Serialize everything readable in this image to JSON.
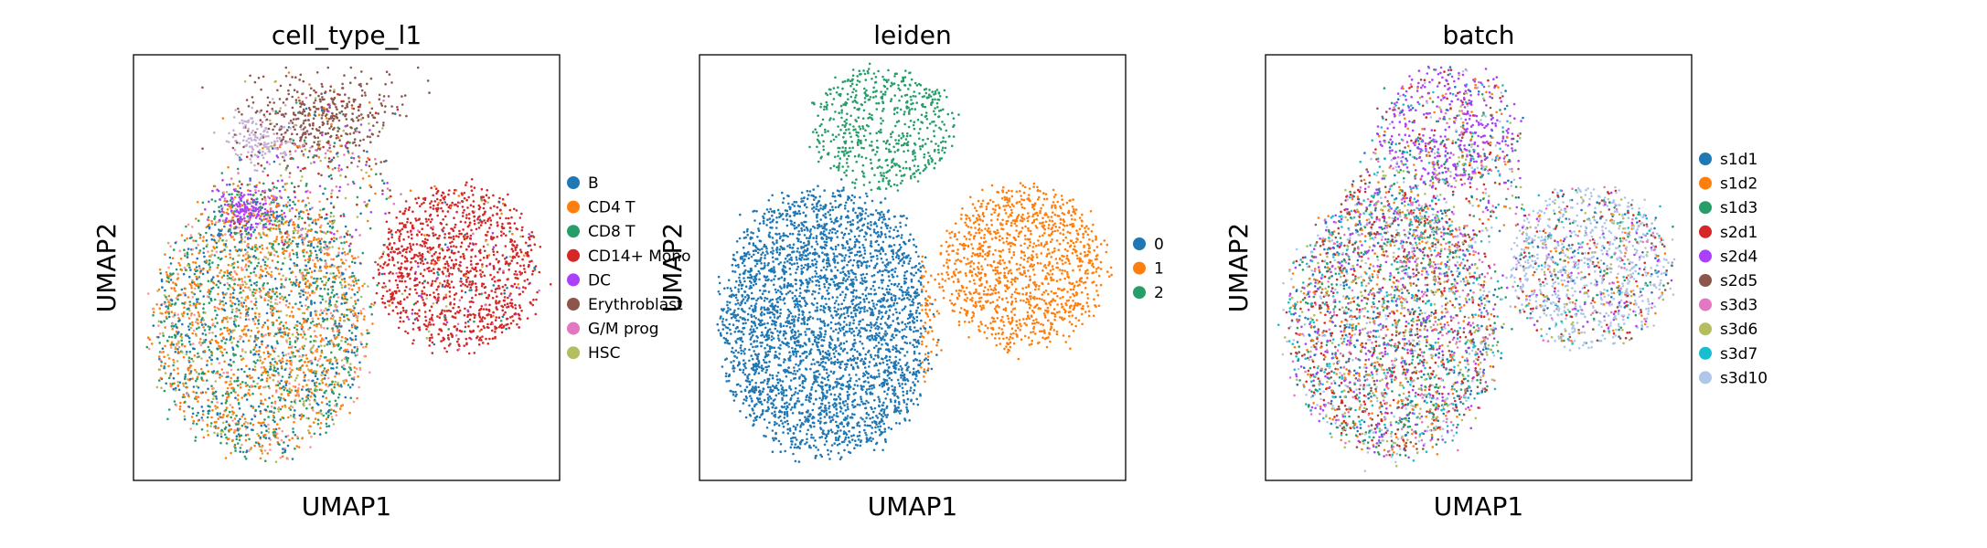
{
  "chart_data": [
    {
      "type": "scatter",
      "title": "cell_type_l1",
      "xlabel": "UMAP1",
      "ylabel": "UMAP2",
      "grid": false,
      "ticks": false,
      "legend_placement": "right",
      "legend": [
        {
          "name": "B",
          "color": "#1f77b4"
        },
        {
          "name": "CD4 T",
          "color": "#ff7f0e"
        },
        {
          "name": "CD8 T",
          "color": "#279e68"
        },
        {
          "name": "CD14+ Mono",
          "color": "#d62728"
        },
        {
          "name": "DC",
          "color": "#aa40fc"
        },
        {
          "name": "Erythroblast",
          "color": "#8c564b"
        },
        {
          "name": "G/M prog",
          "color": "#e377c2"
        },
        {
          "name": "HSC",
          "color": "#b5bd61"
        }
      ]
    },
    {
      "type": "scatter",
      "title": "leiden",
      "xlabel": "UMAP1",
      "ylabel": "UMAP2",
      "grid": false,
      "ticks": false,
      "legend_placement": "right",
      "legend": [
        {
          "name": "0",
          "color": "#1f77b4"
        },
        {
          "name": "1",
          "color": "#ff7f0e"
        },
        {
          "name": "2",
          "color": "#279e68"
        }
      ]
    },
    {
      "type": "scatter",
      "title": "batch",
      "xlabel": "UMAP1",
      "ylabel": "UMAP2",
      "grid": false,
      "ticks": false,
      "legend_placement": "right",
      "legend": [
        {
          "name": "s1d1",
          "color": "#1f77b4"
        },
        {
          "name": "s1d2",
          "color": "#ff7f0e"
        },
        {
          "name": "s1d3",
          "color": "#279e68"
        },
        {
          "name": "s2d1",
          "color": "#d62728"
        },
        {
          "name": "s2d4",
          "color": "#aa40fc"
        },
        {
          "name": "s2d5",
          "color": "#8c564b"
        },
        {
          "name": "s3d3",
          "color": "#e377c2"
        },
        {
          "name": "s3d6",
          "color": "#b5bd61"
        },
        {
          "name": "s3d7",
          "color": "#17becf"
        },
        {
          "name": "s3d10",
          "color": "#aec7e8"
        }
      ]
    }
  ]
}
